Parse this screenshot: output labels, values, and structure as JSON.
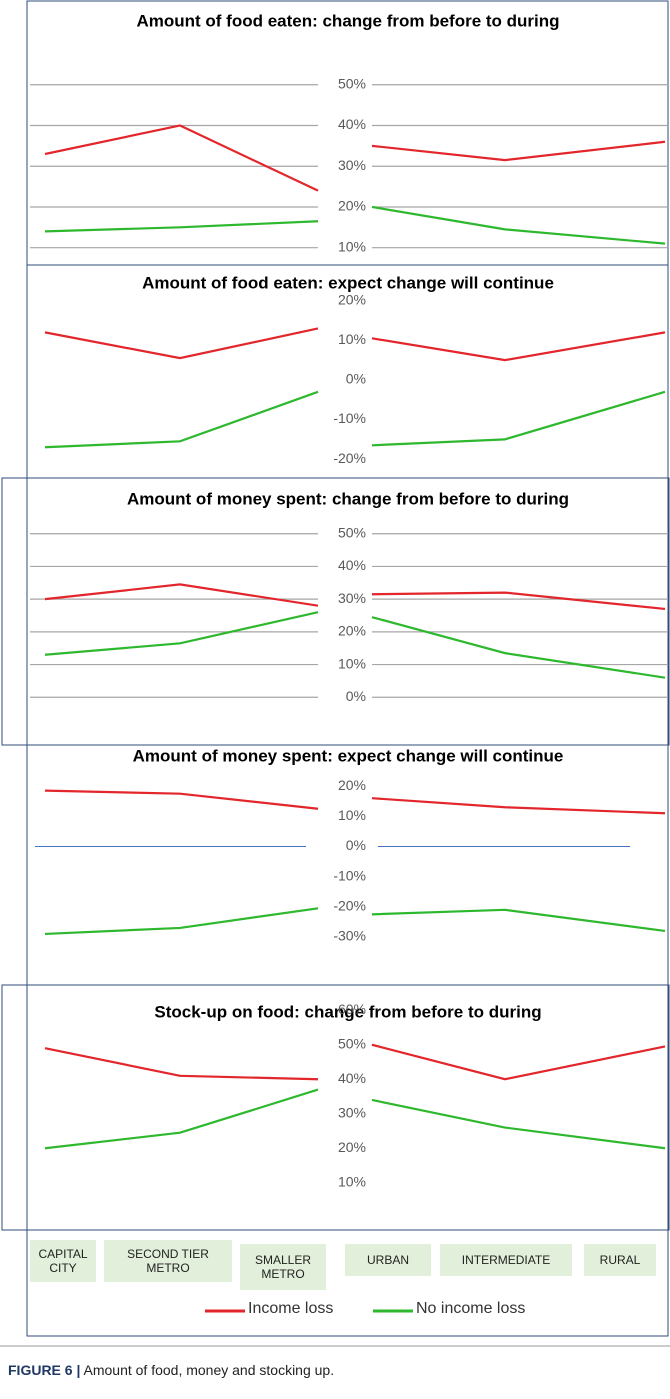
{
  "legend": [
    {
      "name": "Income loss",
      "color": "#e3262b"
    },
    {
      "name": "No income loss",
      "color": "#2eb82e"
    }
  ],
  "category_groups": [
    [
      "CAPITAL CITY",
      "SECOND TIER METRO",
      "SMALLER METRO"
    ],
    [
      "URBAN",
      "INTERMEDIATE",
      "RURAL"
    ]
  ],
  "caption": {
    "label": "FIGURE 6 |",
    "text": "Amount of food, money and stocking up."
  },
  "chart_data": [
    {
      "type": "line",
      "title": "Amount of food eaten: change from before to during",
      "grid": true,
      "ylim": [
        6,
        60
      ],
      "yticks": [
        {
          "value": 50,
          "label": "50%"
        },
        {
          "value": 40,
          "label": "40%"
        },
        {
          "value": 30,
          "label": "30%"
        },
        {
          "value": 20,
          "label": "20%"
        },
        {
          "value": 10,
          "label": "10%"
        }
      ],
      "series": [
        {
          "values": [
            [
              33,
              40,
              24
            ],
            [
              35,
              31.5,
              36
            ]
          ]
        },
        {
          "values": [
            [
              14,
              15,
              16.5
            ],
            [
              20,
              14.5,
              11
            ]
          ]
        }
      ]
    },
    {
      "type": "line",
      "title": "Amount of food eaten: expect change will continue",
      "grid": false,
      "ylim": [
        -24,
        28
      ],
      "yticks": [
        {
          "value": 20,
          "label": "20%"
        },
        {
          "value": 10,
          "label": "10%"
        },
        {
          "value": 0,
          "label": "0%"
        },
        {
          "value": -10,
          "label": "-10%"
        },
        {
          "value": -20,
          "label": "-20%"
        }
      ],
      "series": [
        {
          "values": [
            [
              12,
              5.5,
              13
            ],
            [
              10.5,
              5,
              12
            ]
          ]
        },
        {
          "values": [
            [
              -17,
              -15.5,
              -3
            ],
            [
              -16.5,
              -15,
              -3
            ]
          ]
        }
      ]
    },
    {
      "type": "line",
      "title": "Amount of money spent: change from before to during",
      "grid": true,
      "ylim": [
        -10,
        60
      ],
      "yticks": [
        {
          "value": 50,
          "label": "50%"
        },
        {
          "value": 40,
          "label": "40%"
        },
        {
          "value": 30,
          "label": "30%"
        },
        {
          "value": 20,
          "label": "20%"
        },
        {
          "value": 10,
          "label": "10%"
        },
        {
          "value": 0,
          "label": "0%"
        }
      ],
      "series": [
        {
          "values": [
            [
              30,
              34.5,
              28
            ],
            [
              31.5,
              32,
              27
            ]
          ]
        },
        {
          "values": [
            [
              13,
              16.5,
              26
            ],
            [
              24.5,
              13.5,
              6
            ]
          ]
        }
      ]
    },
    {
      "type": "line",
      "title": "Amount of money spent: expect change will continue",
      "grid": false,
      "zero_line": true,
      "ylim": [
        -32,
        28
      ],
      "yticks": [
        {
          "value": 20,
          "label": "20%"
        },
        {
          "value": 10,
          "label": "10%"
        },
        {
          "value": 0,
          "label": "0%"
        },
        {
          "value": -10,
          "label": "-10%"
        },
        {
          "value": -20,
          "label": "-20%"
        },
        {
          "value": -30,
          "label": "-30%"
        }
      ],
      "series": [
        {
          "values": [
            [
              18.5,
              17.5,
              12.5
            ],
            [
              16,
              13,
              11
            ]
          ]
        },
        {
          "values": [
            [
              -29,
              -27,
              -20.5
            ],
            [
              -22.5,
              -21,
              -28
            ]
          ]
        }
      ]
    },
    {
      "type": "line",
      "title": "Stock-up on food: change from before to during",
      "grid": false,
      "ylim": [
        5,
        65
      ],
      "yticks": [
        {
          "value": 60,
          "label": "60%"
        },
        {
          "value": 50,
          "label": "50%"
        },
        {
          "value": 40,
          "label": "40%"
        },
        {
          "value": 30,
          "label": "30%"
        },
        {
          "value": 20,
          "label": "20%"
        },
        {
          "value": 10,
          "label": "10%"
        }
      ],
      "series": [
        {
          "values": [
            [
              49,
              41,
              40
            ],
            [
              50,
              40,
              49.5
            ]
          ]
        },
        {
          "values": [
            [
              20,
              24.5,
              37
            ],
            [
              34,
              26,
              20
            ]
          ]
        }
      ]
    }
  ]
}
